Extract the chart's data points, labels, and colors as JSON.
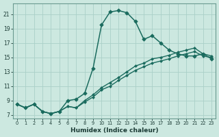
{
  "xlabel": "Humidex (Indice chaleur)",
  "bg_color": "#cce8e0",
  "grid_color": "#aad0c8",
  "line_color": "#1a6b5e",
  "xlim": [
    -0.5,
    23.5
  ],
  "ylim": [
    6.5,
    22.5
  ],
  "xticks": [
    0,
    1,
    2,
    3,
    4,
    5,
    6,
    7,
    8,
    9,
    10,
    11,
    12,
    13,
    14,
    15,
    16,
    17,
    18,
    19,
    20,
    21,
    22,
    23
  ],
  "yticks": [
    7,
    9,
    11,
    13,
    15,
    17,
    19,
    21
  ],
  "line1_x": [
    0,
    1,
    2,
    3,
    4,
    5,
    6,
    7,
    8,
    9,
    10,
    11,
    12,
    13,
    14,
    15,
    16,
    17,
    18,
    19,
    20,
    21,
    22,
    23
  ],
  "line1_y": [
    8.5,
    8.0,
    8.5,
    7.5,
    7.2,
    7.5,
    9.0,
    9.2,
    10.0,
    13.5,
    19.5,
    21.3,
    21.5,
    21.2,
    20.0,
    17.5,
    18.0,
    17.0,
    16.0,
    15.5,
    15.2,
    15.2,
    15.5,
    14.8
  ],
  "line2_x": [
    0,
    1,
    2,
    3,
    4,
    5,
    6,
    7,
    8,
    9,
    10,
    11,
    12,
    13,
    14,
    15,
    16,
    17,
    18,
    19,
    20,
    21,
    22,
    23
  ],
  "line2_y": [
    8.5,
    8.0,
    8.5,
    7.5,
    7.2,
    7.5,
    8.2,
    8.0,
    8.8,
    9.5,
    10.5,
    11.0,
    11.8,
    12.5,
    13.2,
    13.7,
    14.2,
    14.5,
    14.8,
    15.2,
    15.5,
    15.8,
    15.2,
    15.0
  ],
  "line3_x": [
    0,
    1,
    2,
    3,
    4,
    5,
    6,
    7,
    8,
    9,
    10,
    11,
    12,
    13,
    14,
    15,
    16,
    17,
    18,
    19,
    20,
    21,
    22,
    23
  ],
  "line3_y": [
    8.5,
    8.0,
    8.5,
    7.5,
    7.2,
    7.5,
    8.2,
    8.0,
    9.0,
    9.8,
    10.8,
    11.5,
    12.2,
    13.0,
    13.8,
    14.2,
    14.8,
    15.0,
    15.3,
    15.7,
    16.0,
    16.3,
    15.5,
    15.2
  ]
}
